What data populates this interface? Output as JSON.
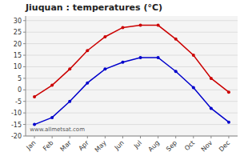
{
  "chart_data": {
    "type": "line",
    "title": "Jiuquan : temperatures (°C)",
    "categories": [
      "Jan",
      "Feb",
      "Mar",
      "Apr",
      "May",
      "Jun",
      "Jul",
      "Aug",
      "Sep",
      "Oct",
      "Nov",
      "Dec"
    ],
    "series": [
      {
        "color": "#cc0000",
        "marker": "circle",
        "line_style": "solid",
        "values": [
          -3,
          2,
          9,
          17,
          23,
          27,
          28,
          28,
          22,
          15,
          5,
          -1
        ]
      },
      {
        "color": "#0000cc",
        "marker": "circle",
        "line_style": "solid",
        "values": [
          -15,
          -12,
          -5,
          3,
          9,
          12,
          14,
          14,
          8,
          1,
          -8,
          -14
        ]
      }
    ],
    "ylim": [
      -20,
      32
    ],
    "yticks": [
      -20,
      -15,
      -10,
      -5,
      0,
      5,
      10,
      15,
      20,
      25,
      30
    ],
    "grid": true,
    "annotations": [
      "www.allmetsat.com"
    ]
  }
}
